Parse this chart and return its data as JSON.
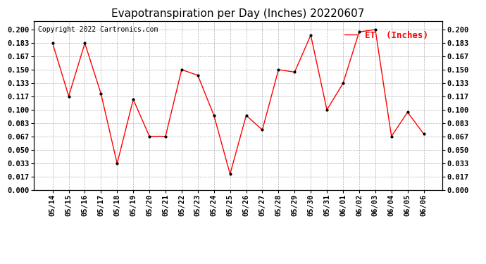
{
  "title": "Evapotranspiration per Day (Inches) 20220607",
  "copyright": "Copyright 2022 Cartronics.com",
  "legend_label": "ET  (Inches)",
  "dates": [
    "05/14",
    "05/15",
    "05/16",
    "05/17",
    "05/18",
    "05/19",
    "05/20",
    "05/21",
    "05/22",
    "05/23",
    "05/24",
    "05/25",
    "05/26",
    "05/27",
    "05/28",
    "05/29",
    "05/30",
    "05/31",
    "06/01",
    "06/02",
    "06/03",
    "06/04",
    "06/05",
    "06/06"
  ],
  "values": [
    0.183,
    0.117,
    0.183,
    0.12,
    0.033,
    0.113,
    0.067,
    0.067,
    0.15,
    0.143,
    0.093,
    0.02,
    0.093,
    0.075,
    0.15,
    0.147,
    0.193,
    0.1,
    0.133,
    0.197,
    0.2,
    0.067,
    0.097,
    0.07
  ],
  "line_color": "red",
  "marker_color": "black",
  "bg_color": "white",
  "grid_color": "#aaaaaa",
  "ylim": [
    0.0,
    0.2105
  ],
  "yticks": [
    0.0,
    0.017,
    0.033,
    0.05,
    0.067,
    0.083,
    0.1,
    0.117,
    0.133,
    0.15,
    0.167,
    0.183,
    0.2
  ],
  "title_fontsize": 11,
  "tick_fontsize": 7.5,
  "legend_fontsize": 9,
  "copyright_fontsize": 7
}
